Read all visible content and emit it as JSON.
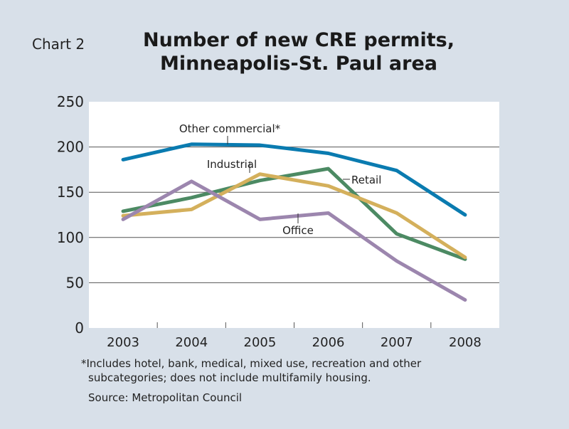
{
  "chart_label": "Chart 2",
  "chart_data": {
    "type": "line",
    "title": "Number of new CRE permits,",
    "subtitle": "Minneapolis-St. Paul area",
    "categories": [
      "2003",
      "2004",
      "2005",
      "2006",
      "2007",
      "2008"
    ],
    "ylim": [
      0,
      250
    ],
    "yticks": [
      0,
      50,
      100,
      150,
      200,
      250
    ],
    "grid": true,
    "series": [
      {
        "name": "Other commercial*",
        "color": "#0a7bb0",
        "values": [
          186,
          203,
          202,
          193,
          174,
          125
        ]
      },
      {
        "name": "Retail",
        "color": "#4c8a63",
        "values": [
          129,
          144,
          163,
          176,
          104,
          76
        ]
      },
      {
        "name": "Industrial",
        "color": "#d4b05c",
        "values": [
          124,
          131,
          170,
          157,
          127,
          78
        ]
      },
      {
        "name": "Office",
        "color": "#9c86ae",
        "values": [
          120,
          162,
          120,
          127,
          74,
          31
        ]
      }
    ]
  },
  "footnote_line1": "*Includes hotel, bank, medical, mixed use, recreation and other",
  "footnote_line2": "subcategories; does not include multifamily housing.",
  "source": "Source: Metropolitan Council"
}
